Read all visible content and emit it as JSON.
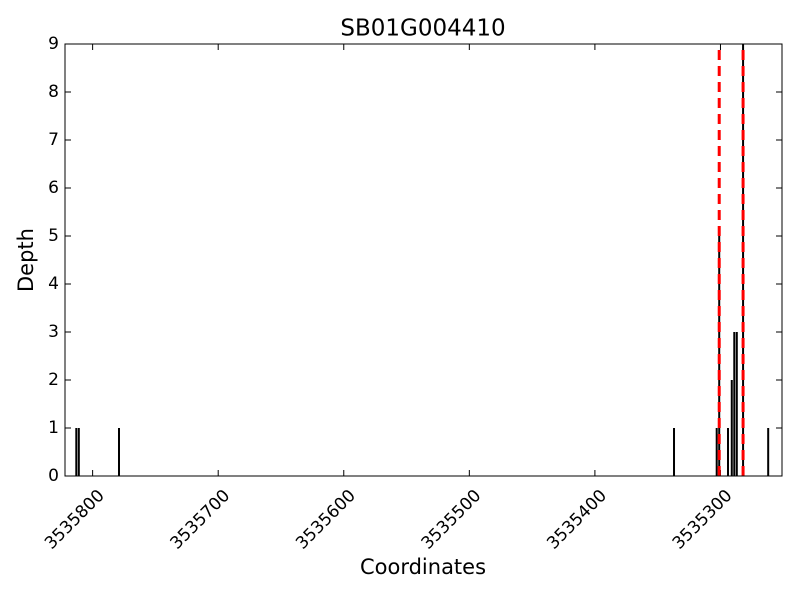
{
  "chart_data": {
    "type": "bar",
    "title": "SB01G004410",
    "x_label": "Coordinates",
    "y_label": "Depth",
    "x": [
      3535813,
      3535811,
      3535779,
      3535337,
      3535303,
      3535301,
      3535294,
      3535291,
      3535289,
      3535287,
      3535282,
      3535262
    ],
    "values": [
      1,
      1,
      1,
      1,
      1,
      5,
      1,
      2,
      3,
      3,
      9,
      1
    ],
    "color": "#000000",
    "xlim": [
      3535822,
      3535251
    ],
    "xticks": [
      3535800,
      3535700,
      3535600,
      3535500,
      3535400,
      3535300
    ],
    "ylim": [
      0,
      9
    ],
    "yticks": [
      0,
      1,
      2,
      3,
      4,
      5,
      6,
      7,
      8,
      9
    ],
    "vlines": {
      "x": [
        3535301,
        3535282
      ],
      "color": "#ff0000",
      "style": "dashed"
    },
    "grid": false
  }
}
